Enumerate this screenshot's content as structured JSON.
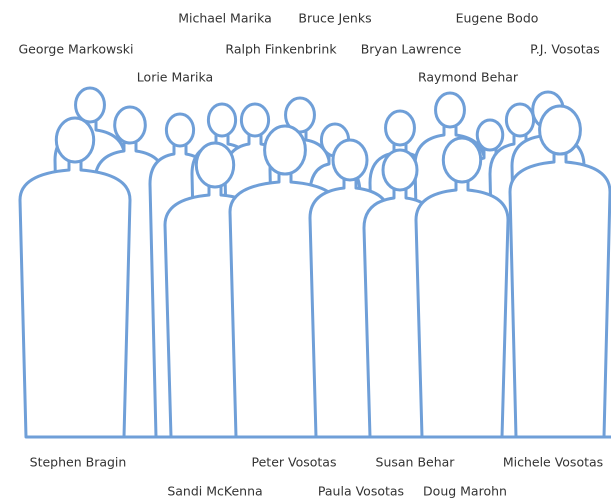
{
  "people": {
    "top": [
      "Michael Marika",
      "Bruce Jenks",
      "Eugene Bodo",
      "George Markowski",
      "Ralph Finkenbrink",
      "Bryan Lawrence",
      "P.J. Vosotas",
      "Lorie Marika",
      "Raymond Behar"
    ],
    "bottom": [
      "Stephen Bragin",
      "Peter Vosotas",
      "Susan Behar",
      "Michele Vosotas",
      "Sandi McKenna",
      "Paula Vosotas",
      "Doug Marohn"
    ]
  }
}
